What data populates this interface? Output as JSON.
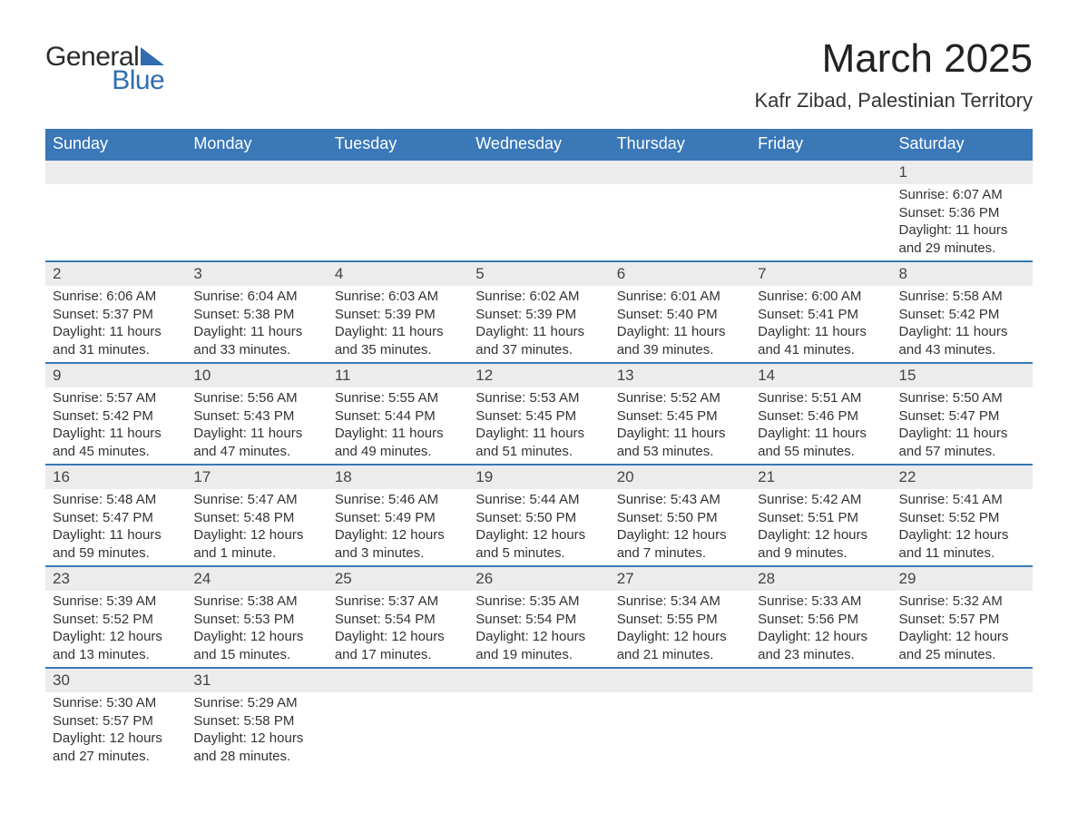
{
  "header": {
    "logo_general": "General",
    "logo_blue": "Blue",
    "month_title": "March 2025",
    "location": "Kafr Zibad, Palestinian Territory"
  },
  "colors": {
    "header_bg": "#3a78b8",
    "header_text": "#ffffff",
    "daynum_bg": "#ececec",
    "row_border": "#3a78b8",
    "body_text": "#333333",
    "logo_accent": "#2f6db0"
  },
  "weekdays": [
    "Sunday",
    "Monday",
    "Tuesday",
    "Wednesday",
    "Thursday",
    "Friday",
    "Saturday"
  ],
  "weeks": [
    {
      "days": [
        null,
        null,
        null,
        null,
        null,
        null,
        {
          "n": "1",
          "sr": "Sunrise: 6:07 AM",
          "ss": "Sunset: 5:36 PM",
          "dl": "Daylight: 11 hours and 29 minutes."
        }
      ]
    },
    {
      "days": [
        {
          "n": "2",
          "sr": "Sunrise: 6:06 AM",
          "ss": "Sunset: 5:37 PM",
          "dl": "Daylight: 11 hours and 31 minutes."
        },
        {
          "n": "3",
          "sr": "Sunrise: 6:04 AM",
          "ss": "Sunset: 5:38 PM",
          "dl": "Daylight: 11 hours and 33 minutes."
        },
        {
          "n": "4",
          "sr": "Sunrise: 6:03 AM",
          "ss": "Sunset: 5:39 PM",
          "dl": "Daylight: 11 hours and 35 minutes."
        },
        {
          "n": "5",
          "sr": "Sunrise: 6:02 AM",
          "ss": "Sunset: 5:39 PM",
          "dl": "Daylight: 11 hours and 37 minutes."
        },
        {
          "n": "6",
          "sr": "Sunrise: 6:01 AM",
          "ss": "Sunset: 5:40 PM",
          "dl": "Daylight: 11 hours and 39 minutes."
        },
        {
          "n": "7",
          "sr": "Sunrise: 6:00 AM",
          "ss": "Sunset: 5:41 PM",
          "dl": "Daylight: 11 hours and 41 minutes."
        },
        {
          "n": "8",
          "sr": "Sunrise: 5:58 AM",
          "ss": "Sunset: 5:42 PM",
          "dl": "Daylight: 11 hours and 43 minutes."
        }
      ]
    },
    {
      "days": [
        {
          "n": "9",
          "sr": "Sunrise: 5:57 AM",
          "ss": "Sunset: 5:42 PM",
          "dl": "Daylight: 11 hours and 45 minutes."
        },
        {
          "n": "10",
          "sr": "Sunrise: 5:56 AM",
          "ss": "Sunset: 5:43 PM",
          "dl": "Daylight: 11 hours and 47 minutes."
        },
        {
          "n": "11",
          "sr": "Sunrise: 5:55 AM",
          "ss": "Sunset: 5:44 PM",
          "dl": "Daylight: 11 hours and 49 minutes."
        },
        {
          "n": "12",
          "sr": "Sunrise: 5:53 AM",
          "ss": "Sunset: 5:45 PM",
          "dl": "Daylight: 11 hours and 51 minutes."
        },
        {
          "n": "13",
          "sr": "Sunrise: 5:52 AM",
          "ss": "Sunset: 5:45 PM",
          "dl": "Daylight: 11 hours and 53 minutes."
        },
        {
          "n": "14",
          "sr": "Sunrise: 5:51 AM",
          "ss": "Sunset: 5:46 PM",
          "dl": "Daylight: 11 hours and 55 minutes."
        },
        {
          "n": "15",
          "sr": "Sunrise: 5:50 AM",
          "ss": "Sunset: 5:47 PM",
          "dl": "Daylight: 11 hours and 57 minutes."
        }
      ]
    },
    {
      "days": [
        {
          "n": "16",
          "sr": "Sunrise: 5:48 AM",
          "ss": "Sunset: 5:47 PM",
          "dl": "Daylight: 11 hours and 59 minutes."
        },
        {
          "n": "17",
          "sr": "Sunrise: 5:47 AM",
          "ss": "Sunset: 5:48 PM",
          "dl": "Daylight: 12 hours and 1 minute."
        },
        {
          "n": "18",
          "sr": "Sunrise: 5:46 AM",
          "ss": "Sunset: 5:49 PM",
          "dl": "Daylight: 12 hours and 3 minutes."
        },
        {
          "n": "19",
          "sr": "Sunrise: 5:44 AM",
          "ss": "Sunset: 5:50 PM",
          "dl": "Daylight: 12 hours and 5 minutes."
        },
        {
          "n": "20",
          "sr": "Sunrise: 5:43 AM",
          "ss": "Sunset: 5:50 PM",
          "dl": "Daylight: 12 hours and 7 minutes."
        },
        {
          "n": "21",
          "sr": "Sunrise: 5:42 AM",
          "ss": "Sunset: 5:51 PM",
          "dl": "Daylight: 12 hours and 9 minutes."
        },
        {
          "n": "22",
          "sr": "Sunrise: 5:41 AM",
          "ss": "Sunset: 5:52 PM",
          "dl": "Daylight: 12 hours and 11 minutes."
        }
      ]
    },
    {
      "days": [
        {
          "n": "23",
          "sr": "Sunrise: 5:39 AM",
          "ss": "Sunset: 5:52 PM",
          "dl": "Daylight: 12 hours and 13 minutes."
        },
        {
          "n": "24",
          "sr": "Sunrise: 5:38 AM",
          "ss": "Sunset: 5:53 PM",
          "dl": "Daylight: 12 hours and 15 minutes."
        },
        {
          "n": "25",
          "sr": "Sunrise: 5:37 AM",
          "ss": "Sunset: 5:54 PM",
          "dl": "Daylight: 12 hours and 17 minutes."
        },
        {
          "n": "26",
          "sr": "Sunrise: 5:35 AM",
          "ss": "Sunset: 5:54 PM",
          "dl": "Daylight: 12 hours and 19 minutes."
        },
        {
          "n": "27",
          "sr": "Sunrise: 5:34 AM",
          "ss": "Sunset: 5:55 PM",
          "dl": "Daylight: 12 hours and 21 minutes."
        },
        {
          "n": "28",
          "sr": "Sunrise: 5:33 AM",
          "ss": "Sunset: 5:56 PM",
          "dl": "Daylight: 12 hours and 23 minutes."
        },
        {
          "n": "29",
          "sr": "Sunrise: 5:32 AM",
          "ss": "Sunset: 5:57 PM",
          "dl": "Daylight: 12 hours and 25 minutes."
        }
      ]
    },
    {
      "days": [
        {
          "n": "30",
          "sr": "Sunrise: 5:30 AM",
          "ss": "Sunset: 5:57 PM",
          "dl": "Daylight: 12 hours and 27 minutes."
        },
        {
          "n": "31",
          "sr": "Sunrise: 5:29 AM",
          "ss": "Sunset: 5:58 PM",
          "dl": "Daylight: 12 hours and 28 minutes."
        },
        null,
        null,
        null,
        null,
        null
      ]
    }
  ]
}
